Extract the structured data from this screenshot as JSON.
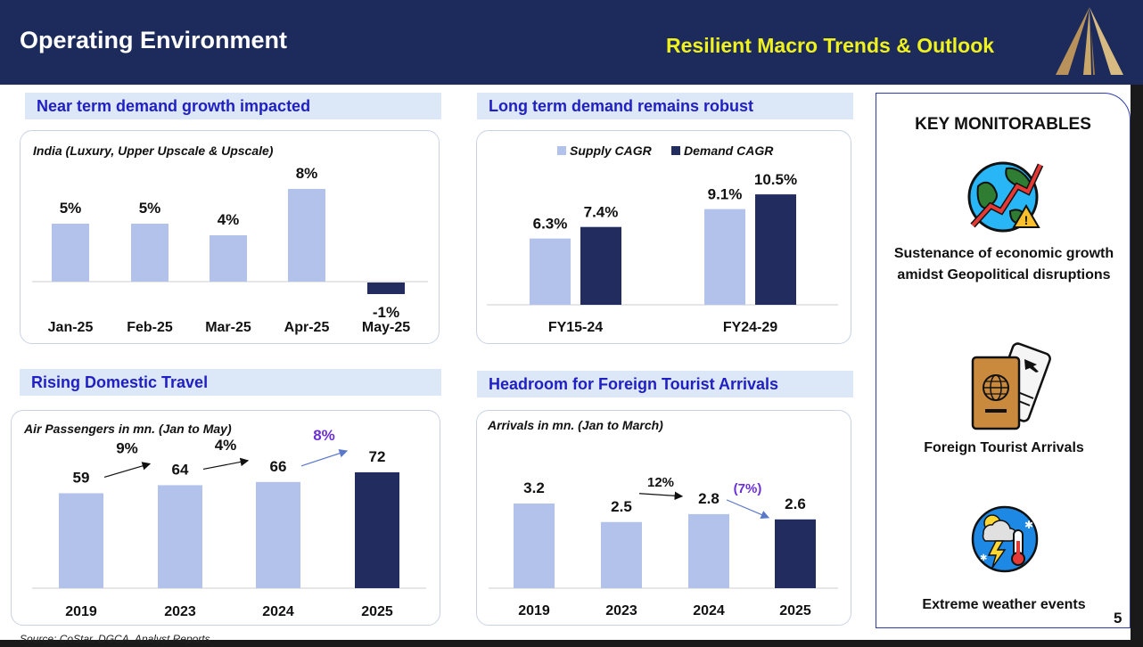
{
  "header": {
    "title": "Operating Environment",
    "subtitle": "Resilient Macro Trends & Outlook"
  },
  "colors": {
    "navy": "#1c2a5c",
    "light_bar": "#b3c2ea",
    "dark_bar": "#232c5e",
    "accent_text": "#1f1fc4",
    "yellow": "#f0f21c",
    "purple": "#6b2fd6"
  },
  "chart_data": [
    {
      "type": "bar",
      "section": "Near term demand growth impacted",
      "title": "India (Luxury, Upper Upscale & Upscale)",
      "categories": [
        "Jan-25",
        "Feb-25",
        "Mar-25",
        "Apr-25",
        "May-25"
      ],
      "values": [
        5,
        5,
        4,
        8,
        -1
      ],
      "data_labels": [
        "5%",
        "5%",
        "4%",
        "8%",
        "-1%"
      ],
      "ylim": [
        -1.5,
        8.5
      ]
    },
    {
      "type": "bar",
      "section": "Long term demand remains robust",
      "title": "",
      "categories": [
        "FY15-24",
        "FY24-29"
      ],
      "series": [
        {
          "name": "Supply CAGR",
          "values": [
            6.3,
            9.1
          ],
          "labels": [
            "6.3%",
            "9.1%"
          ]
        },
        {
          "name": "Demand CAGR",
          "values": [
            7.4,
            10.5
          ],
          "labels": [
            "7.4%",
            "10.5%"
          ]
        }
      ],
      "ylim": [
        0,
        11
      ]
    },
    {
      "type": "bar",
      "section": "Rising Domestic Travel",
      "title": "Air Passengers in mn. (Jan to May)",
      "categories": [
        "2019",
        "2023",
        "2024",
        "2025"
      ],
      "values": [
        59,
        64,
        66,
        72
      ],
      "data_labels": [
        "59",
        "64",
        "66",
        "72"
      ],
      "growth_annotations": [
        "9%",
        "4%",
        "8%"
      ],
      "ylim": [
        0,
        72
      ]
    },
    {
      "type": "bar",
      "section": "Headroom for Foreign Tourist Arrivals",
      "title": "Arrivals in mn. (Jan to March)",
      "categories": [
        "2019",
        "2023",
        "2024",
        "2025"
      ],
      "values": [
        3.2,
        2.5,
        2.8,
        2.6
      ],
      "data_labels": [
        "3.2",
        "2.5",
        "2.8",
        "2.6"
      ],
      "growth_annotations": [
        "12%",
        "(7%)"
      ],
      "ylim": [
        0,
        3.2
      ]
    }
  ],
  "key_monitorables": {
    "title": "KEY MONITORABLES",
    "items": [
      {
        "label": "Sustenance of economic growth amidst Geopolitical disruptions",
        "icon": "globe-risk-icon"
      },
      {
        "label": "Foreign Tourist Arrivals",
        "icon": "passport-icon"
      },
      {
        "label": "Extreme weather events",
        "icon": "weather-icon"
      }
    ]
  },
  "footer": {
    "page_number": "5",
    "source": "Source: CoStar, DGCA, Analyst Reports"
  }
}
